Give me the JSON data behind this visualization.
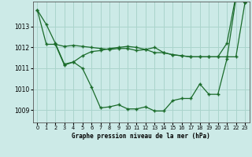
{
  "title": "Graphe pression niveau de la mer (hPa)",
  "background_color": "#cceae7",
  "grid_color": "#aad4cc",
  "line_color": "#1a6b2a",
  "xlim": [
    -0.5,
    23.5
  ],
  "ylim": [
    1008.4,
    1014.2
  ],
  "yticks": [
    1009,
    1010,
    1011,
    1012,
    1013
  ],
  "xticks": [
    0,
    1,
    2,
    3,
    4,
    5,
    6,
    7,
    8,
    9,
    10,
    11,
    12,
    13,
    14,
    15,
    16,
    17,
    18,
    19,
    20,
    21,
    22,
    23
  ],
  "series1": {
    "x": [
      0,
      1,
      2,
      3,
      4,
      5,
      6,
      7,
      8,
      9,
      10,
      11,
      12,
      13,
      14,
      15,
      16,
      17,
      18,
      19,
      20,
      21,
      22,
      23
    ],
    "y": [
      1013.8,
      1013.1,
      1012.2,
      1011.2,
      1011.3,
      1011.0,
      1010.1,
      1009.1,
      1009.15,
      1009.25,
      1009.05,
      1009.05,
      1009.15,
      1008.95,
      1008.95,
      1009.45,
      1009.55,
      1009.55,
      1010.25,
      1009.75,
      1009.75,
      1011.45,
      1014.35,
      1014.15
    ]
  },
  "series2": {
    "x": [
      0,
      1,
      2,
      3,
      4,
      5,
      6,
      7,
      8,
      9,
      10,
      11,
      12,
      13,
      14,
      15,
      16,
      17,
      18,
      19,
      20,
      21,
      22,
      23
    ],
    "y": [
      1013.8,
      1012.15,
      1012.15,
      1012.05,
      1012.1,
      1012.05,
      1012.0,
      1011.95,
      1011.9,
      1011.95,
      1011.95,
      1011.85,
      1011.9,
      1011.75,
      1011.75,
      1011.65,
      1011.6,
      1011.55,
      1011.55,
      1011.55,
      1011.55,
      1011.55,
      1011.55,
      1014.15
    ]
  },
  "series3": {
    "x": [
      2,
      3,
      4,
      5,
      6,
      7,
      8,
      9,
      10,
      11,
      12,
      13,
      14,
      15,
      16,
      17,
      18,
      19,
      20,
      21,
      22,
      23
    ],
    "y": [
      1012.15,
      1011.15,
      1011.3,
      1011.6,
      1011.8,
      1011.85,
      1011.95,
      1012.0,
      1012.05,
      1012.0,
      1011.9,
      1012.0,
      1011.75,
      1011.65,
      1011.6,
      1011.55,
      1011.55,
      1011.55,
      1011.55,
      1012.2,
      1014.5,
      1014.15
    ]
  }
}
